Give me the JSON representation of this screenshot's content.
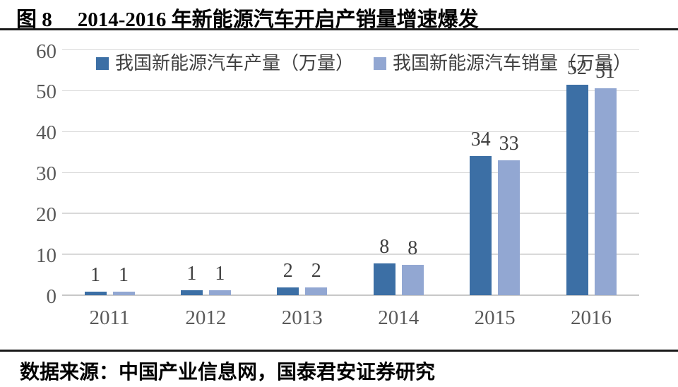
{
  "header": {
    "figure_label": "图 8",
    "title": "2014-2016 年新能源汽车开启产销量增速爆发"
  },
  "legend": [
    {
      "label": "我国新能源汽车产量（万量）",
      "color": "#3c6fa5"
    },
    {
      "label": "我国新能源汽车销量（万量）",
      "color": "#92a7d2"
    }
  ],
  "chart_data": {
    "type": "bar",
    "categories": [
      "2011",
      "2012",
      "2013",
      "2014",
      "2015",
      "2016"
    ],
    "series": [
      {
        "name": "我国新能源汽车产量（万量）",
        "color": "#3c6fa5",
        "values": [
          1,
          1,
          2,
          8,
          34,
          52
        ],
        "visual_heights": [
          0.8,
          1.2,
          1.9,
          7.8,
          34,
          51.5
        ]
      },
      {
        "name": "我国新能源汽车销量（万量）",
        "color": "#92a7d2",
        "values": [
          1,
          1,
          2,
          8,
          33,
          51
        ],
        "visual_heights": [
          0.8,
          1.2,
          1.9,
          7.5,
          33,
          50.6
        ]
      }
    ],
    "title": "2014-2016 年新能源汽车开启产销量增速爆发",
    "xlabel": "",
    "ylabel": "",
    "ylim": [
      0,
      60
    ],
    "yticks": [
      0,
      10,
      20,
      30,
      40,
      50,
      60
    ],
    "grid": true,
    "legend_position": "top"
  },
  "footer": {
    "source": "数据来源：中国产业信息网，国泰君安证券研究"
  },
  "colors": {
    "grid_line": "#d9d9d9",
    "axis_text": "#595959",
    "value_text": "#3f3f3f",
    "rule": "#1a1a1a"
  }
}
